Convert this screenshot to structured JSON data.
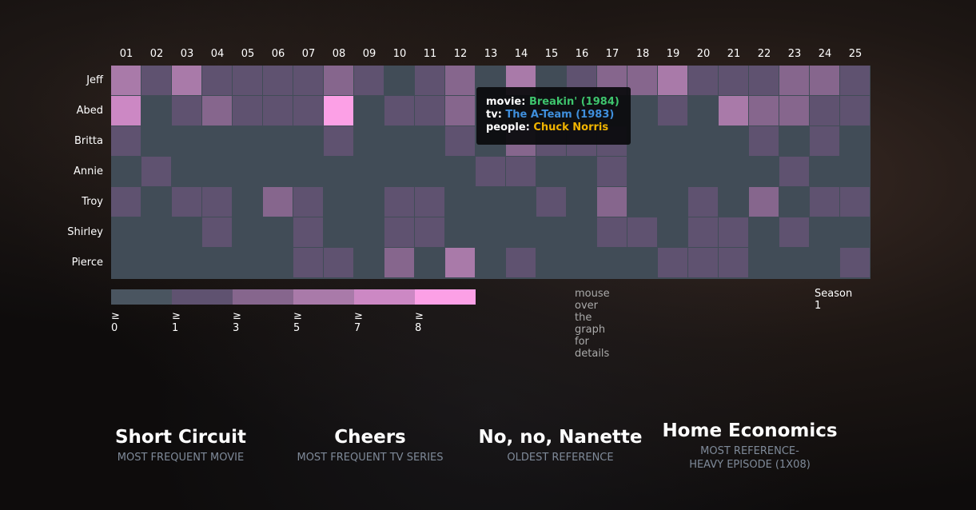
{
  "chart_data": {
    "type": "heatmap",
    "x_categories": [
      "01",
      "02",
      "03",
      "04",
      "05",
      "06",
      "07",
      "08",
      "09",
      "10",
      "11",
      "12",
      "13",
      "14",
      "15",
      "16",
      "17",
      "18",
      "19",
      "20",
      "21",
      "22",
      "23",
      "24",
      "25"
    ],
    "y_categories": [
      "Jeff",
      "Abed",
      "Britta",
      "Annie",
      "Troy",
      "Shirley",
      "Pierce"
    ],
    "values": [
      [
        5,
        1,
        5,
        1,
        1,
        1,
        1,
        3,
        1,
        0,
        1,
        3,
        0,
        5,
        0,
        1,
        3,
        3,
        5,
        1,
        1,
        1,
        3,
        3,
        1
      ],
      [
        7,
        0,
        1,
        3,
        1,
        1,
        1,
        8,
        0,
        1,
        1,
        3,
        0,
        0,
        0,
        0,
        0,
        0,
        1,
        0,
        5,
        3,
        3,
        1,
        1
      ],
      [
        1,
        0,
        0,
        0,
        0,
        0,
        0,
        1,
        0,
        0,
        0,
        1,
        0,
        3,
        1,
        1,
        1,
        0,
        0,
        0,
        0,
        1,
        0,
        1,
        0
      ],
      [
        0,
        1,
        0,
        0,
        0,
        0,
        0,
        0,
        0,
        0,
        0,
        0,
        1,
        1,
        0,
        0,
        1,
        0,
        0,
        0,
        0,
        0,
        1,
        0,
        0
      ],
      [
        1,
        0,
        1,
        1,
        0,
        3,
        1,
        0,
        0,
        1,
        1,
        0,
        0,
        0,
        1,
        0,
        3,
        0,
        0,
        1,
        0,
        3,
        0,
        1,
        1
      ],
      [
        0,
        0,
        0,
        1,
        0,
        0,
        1,
        0,
        0,
        1,
        1,
        0,
        0,
        0,
        0,
        0,
        1,
        1,
        0,
        1,
        1,
        0,
        1,
        0,
        0
      ],
      [
        0,
        0,
        0,
        0,
        0,
        0,
        1,
        1,
        0,
        3,
        0,
        5,
        0,
        1,
        0,
        0,
        0,
        0,
        1,
        1,
        1,
        0,
        0,
        0,
        1
      ]
    ],
    "legend": {
      "thresholds": [
        0,
        1,
        3,
        5,
        7,
        8
      ],
      "labels": [
        "≥ 0",
        "≥ 1",
        "≥ 3",
        "≥ 5",
        "≥ 7",
        "≥ 8"
      ],
      "colors": [
        "#4a5560",
        "#5f5270",
        "#86668d",
        "#a97aa9",
        "#cc88c4",
        "#fca0e6"
      ]
    },
    "season_label": "Season 1",
    "hint": "mouse over the graph for details"
  },
  "tooltip": {
    "movie_key": "movie:",
    "movie_value": "Breakin' (1984)",
    "movie_color": "#3ec46d",
    "tv_key": "tv:",
    "tv_value": "The A-Team (1983)",
    "tv_color": "#3f8fdc",
    "people_key": "people:",
    "people_value": "Chuck Norris",
    "people_color": "#f0b400"
  },
  "stats": [
    {
      "value": "Short Circuit",
      "label": "MOST FREQUENT MOVIE"
    },
    {
      "value": "Cheers",
      "label": "MOST FREQUENT TV SERIES"
    },
    {
      "value": "No, no, Nanette",
      "label": "OLDEST REFERENCE"
    },
    {
      "value": "Home Economics",
      "label": "MOST REFERENCE-HEAVY EPISODE (1X08)"
    }
  ]
}
